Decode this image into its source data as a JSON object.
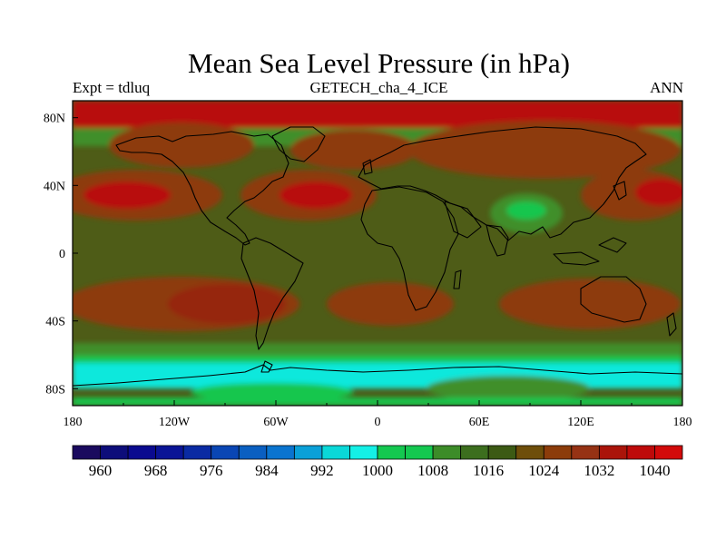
{
  "header": {
    "title": "Mean Sea Level Pressure (in hPa)",
    "left": "Expt = tdluq",
    "center": "GETECH_cha_4_ICE",
    "right": "ANN"
  },
  "map": {
    "projection": "cylindrical equidistant",
    "lon_range": [
      -180,
      180
    ],
    "lat_range": [
      -90,
      90
    ],
    "lon_ticks": [
      {
        "value": -180,
        "label": "180"
      },
      {
        "value": -120,
        "label": "120W"
      },
      {
        "value": -60,
        "label": "60W"
      },
      {
        "value": 0,
        "label": "0"
      },
      {
        "value": 60,
        "label": "60E"
      },
      {
        "value": 120,
        "label": "120E"
      },
      {
        "value": 180,
        "label": "180"
      }
    ],
    "lat_ticks": [
      {
        "value": 80,
        "label": "80N"
      },
      {
        "value": 40,
        "label": "40N"
      },
      {
        "value": 0,
        "label": "0"
      },
      {
        "value": -40,
        "label": "40S"
      },
      {
        "value": -80,
        "label": "80S"
      }
    ]
  },
  "colorbar": {
    "colors": [
      "#1a0a5e",
      "#0d0d7a",
      "#0a0a8f",
      "#0a1496",
      "#0a2aa3",
      "#0a46b4",
      "#0a5fc1",
      "#0a74cf",
      "#0aa0d8",
      "#0ad8d8",
      "#14f0e6",
      "#14c850",
      "#14c850",
      "#3c8c28",
      "#3c6e1e",
      "#3c5a14",
      "#6e4e0a",
      "#8c3c0a",
      "#963214",
      "#aa140a",
      "#be0a0a",
      "#d20a0a"
    ],
    "labels": [
      "960",
      "968",
      "976",
      "984",
      "992",
      "1000",
      "1008",
      "1016",
      "1024",
      "1032",
      "1040"
    ]
  },
  "colors": {
    "high_red": "#b80f0c",
    "orange_brown": "#8d3a0c",
    "olive": "#4e5c17",
    "green": "#3f8f29",
    "bright_green": "#12c64e",
    "cyan": "#0fe8dc",
    "coastline": "#000000"
  }
}
